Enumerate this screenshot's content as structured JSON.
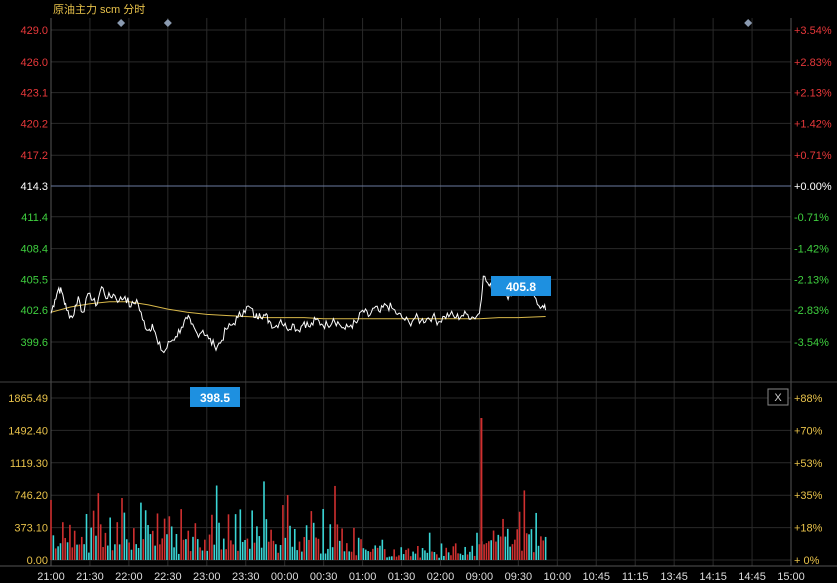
{
  "title": "原油主力 scm 分时",
  "colors": {
    "background": "#000000",
    "grid": "#2a2a2a",
    "up": "#e8383a",
    "down": "#3fd03f",
    "neutral": "#ffffff",
    "volume_label": "#e8c24a",
    "price_line": "#ffffff",
    "avg_line": "#d8b84a",
    "ref_line": "#6a7aa0",
    "callout": "#1e90e0",
    "vol_up": "#d03030",
    "vol_down": "#3ad6d6"
  },
  "close_button_label": "X",
  "chart_data": {
    "type": "line",
    "reference_price": 414.3,
    "price_axis": {
      "ticks": [
        "429.0",
        "426.0",
        "423.1",
        "420.2",
        "417.2",
        "414.3",
        "411.4",
        "408.4",
        "405.5",
        "402.6",
        "399.6"
      ],
      "values": [
        429.0,
        426.0,
        423.1,
        420.2,
        417.2,
        414.3,
        411.4,
        408.4,
        405.5,
        402.6,
        399.6
      ],
      "ylim": [
        398.15,
        430.45
      ]
    },
    "percent_axis": {
      "ticks": [
        "+3.54%",
        "+2.83%",
        "+2.13%",
        "+1.42%",
        "+0.71%",
        "+0.00%",
        "-0.71%",
        "-1.42%",
        "-2.13%",
        "-2.83%",
        "-3.54%"
      ]
    },
    "volume_axis": {
      "ticks": [
        "1865.49",
        "1492.40",
        "1119.30",
        "746.20",
        "373.10",
        "0.00"
      ],
      "values": [
        1865.49,
        1492.4,
        1119.3,
        746.2,
        373.1,
        0
      ],
      "pct_ticks": [
        "+88%",
        "+70%",
        "+53%",
        "+35%",
        "+18%",
        "+ 0%"
      ],
      "ylim": [
        0,
        2000
      ]
    },
    "time_axis": {
      "labels": [
        "21:00",
        "21:30",
        "22:00",
        "22:30",
        "23:00",
        "23:30",
        "00:00",
        "00:30",
        "01:00",
        "01:30",
        "02:00",
        "09:00",
        "09:30",
        "10:00",
        "10:45",
        "11:15",
        "13:45",
        "14:15",
        "14:45",
        "15:00"
      ]
    },
    "max_label": "405.8",
    "min_label": "398.5",
    "series": [
      {
        "time_index": [
          0,
          0.1,
          0.2,
          0.3,
          0.4,
          0.55,
          0.7,
          0.8,
          1.0,
          1.15,
          1.3,
          1.45,
          1.6,
          1.75,
          1.9,
          2.05,
          2.2,
          2.35,
          2.5,
          2.6,
          2.75,
          2.9,
          3.05,
          3.2,
          3.35,
          3.5,
          3.6,
          3.75,
          3.9,
          4.05,
          4.2,
          4.35,
          4.5,
          4.65,
          4.8,
          4.95,
          5.1,
          5.25,
          5.35,
          5.5,
          5.6,
          5.75,
          5.9,
          6.05,
          6.2,
          6.35,
          6.5,
          6.65,
          6.8,
          6.95,
          7.1,
          7.25,
          7.4,
          7.55,
          7.7,
          7.85,
          8.0,
          8.15,
          8.3,
          8.45,
          8.6,
          8.75,
          8.9,
          9.05,
          9.2,
          9.35,
          9.5,
          9.65,
          9.8,
          9.95,
          10.1,
          10.25,
          10.4,
          10.55,
          10.7,
          10.85,
          11.0,
          11.1,
          11.25,
          11.4,
          11.55,
          11.7,
          11.85,
          12.0,
          12.15,
          12.3,
          12.45,
          12.6,
          12.7
        ],
        "values": [
          402.3,
          403.6,
          404.7,
          404.1,
          402.6,
          401.9,
          403.9,
          402.4,
          404.2,
          403.0,
          404.8,
          403.7,
          404.1,
          403.5,
          403.9,
          402.9,
          403.6,
          401.7,
          400.7,
          401.3,
          399.4,
          398.6,
          399.6,
          400.1,
          401.0,
          401.8,
          401.3,
          400.4,
          400.7,
          399.9,
          399.2,
          399.5,
          400.8,
          401.2,
          401.9,
          402.6,
          402.9,
          401.9,
          402.3,
          402.1,
          401.6,
          401.0,
          401.7,
          400.9,
          401.3,
          400.7,
          401.5,
          401.0,
          401.7,
          401.3,
          401.2,
          401.8,
          401.3,
          400.8,
          401.2,
          401.4,
          402.6,
          402.0,
          402.8,
          402.4,
          403.1,
          402.8,
          402.2,
          401.8,
          401.4,
          401.9,
          401.6,
          401.8,
          402.0,
          401.5,
          402.0,
          402.2,
          401.9,
          402.1,
          402.2,
          401.9,
          402.3,
          405.8,
          404.9,
          404.3,
          404.6,
          404.0,
          404.2,
          404.5,
          404.0,
          404.7,
          403.7,
          402.9,
          402.6
        ]
      },
      {
        "time_index": [
          0,
          0.5,
          1.0,
          1.5,
          2.0,
          2.5,
          3.0,
          3.5,
          4.0,
          4.5,
          5.0,
          5.5,
          6.0,
          6.5,
          7.0,
          7.5,
          8.0,
          8.5,
          9.0,
          9.5,
          10.0,
          10.5,
          11.0,
          11.5,
          12.0,
          12.7
        ],
        "values": [
          402.4,
          402.9,
          403.2,
          403.4,
          403.4,
          403.1,
          402.7,
          402.4,
          402.2,
          402.1,
          402.0,
          401.9,
          401.9,
          401.9,
          401.8,
          401.8,
          401.8,
          401.8,
          401.8,
          401.8,
          401.8,
          401.8,
          401.8,
          401.9,
          401.9,
          402.0
        ]
      }
    ],
    "volume": {
      "num_bars": 210,
      "description_values_sample": [
        740,
        460,
        240,
        300,
        180,
        480,
        210,
        330,
        540,
        250
      ],
      "spike_value": 1635,
      "spike_time_index": 11.05
    }
  }
}
